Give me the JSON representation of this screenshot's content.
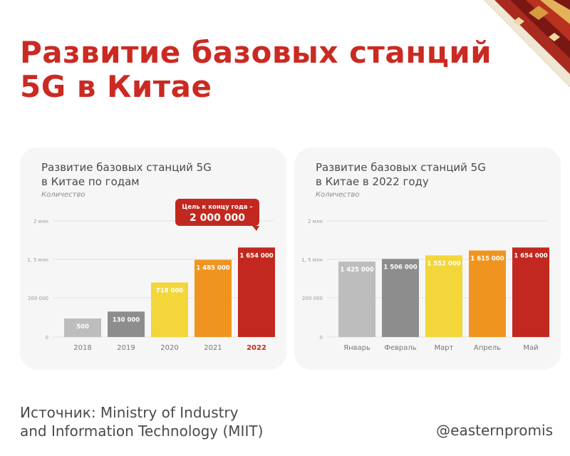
{
  "headline": {
    "line1": "Развитие базовых станций",
    "line2": "5G в Китае"
  },
  "colors": {
    "title_red": "#cb2a22",
    "bar_grey_light": "#bdbdbd",
    "bar_grey_dark": "#8d8d8d",
    "bar_yellow": "#f2d63a",
    "bar_orange": "#ef951f",
    "bar_red": "#c2281f",
    "card_bg": "#f6f6f6"
  },
  "chart_data": [
    {
      "type": "bar",
      "title_line1": "Развитие базовых станций 5G",
      "title_line2": "в Китае по годам",
      "unit_label": "Количество",
      "categories": [
        "2018",
        "2019",
        "2020",
        "2021",
        "2022"
      ],
      "values": [
        500,
        130000,
        718000,
        1485000,
        1654000
      ],
      "value_labels": [
        "500",
        "130 000",
        "718 000",
        "1 485 000",
        "1 654 000"
      ],
      "y_ticks": [
        "0",
        "200 000",
        "1, 5 млн",
        "2 млн"
      ],
      "highlight_category": "2022",
      "callout_line1": "Цель к концу года –",
      "callout_line2": "2 000 000",
      "grid": true,
      "legend": "none"
    },
    {
      "type": "bar",
      "title_line1": "Развитие базовых станций 5G",
      "title_line2": "в Китае в 2022 году",
      "unit_label": "Количество",
      "categories": [
        "Январь",
        "Февраль",
        "Март",
        "Апрель",
        "Май"
      ],
      "values": [
        1425000,
        1506000,
        1552000,
        1615000,
        1654000
      ],
      "value_labels": [
        "1 425 000",
        "1 506 000",
        "1 552 000",
        "1 615 000",
        "1 654 000"
      ],
      "y_ticks": [
        "0",
        "200 000",
        "1, 5 млн",
        "2 млн"
      ],
      "grid": true,
      "legend": "none"
    }
  ],
  "footer": {
    "source_line1": "Источник: Ministry of Industry",
    "source_line2": "and Information Technology (MIIT)",
    "handle": "@easternpromis"
  }
}
